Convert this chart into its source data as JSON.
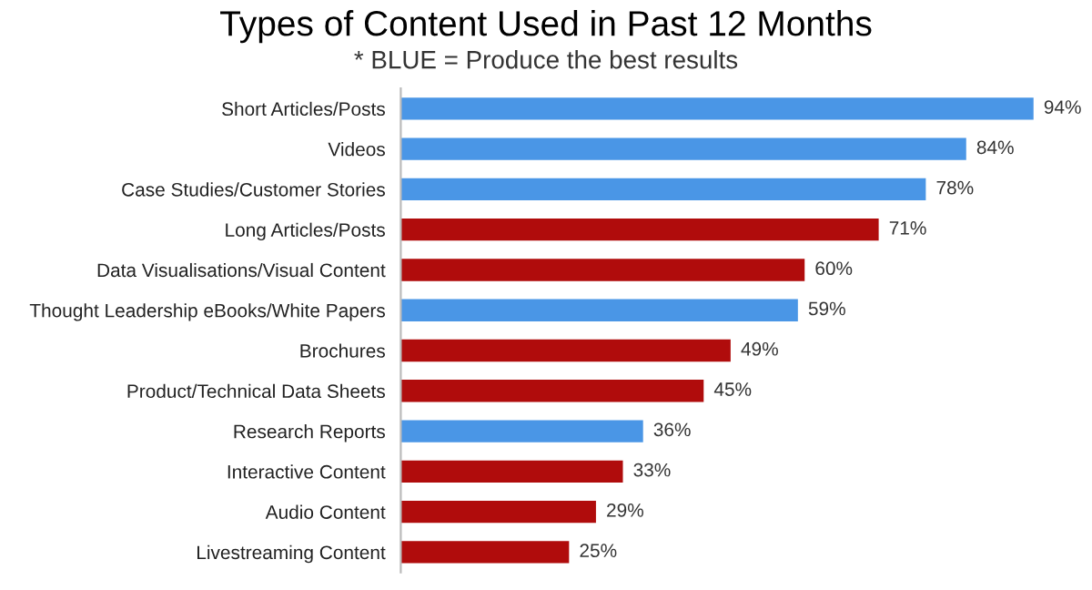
{
  "chart_data": {
    "type": "bar",
    "orientation": "horizontal",
    "title": "Types of Content Used in Past 12 Months",
    "subtitle": "* BLUE = Produce the best results",
    "categories": [
      "Short Articles/Posts",
      "Videos",
      "Case Studies/Customer Stories",
      "Long Articles/Posts",
      "Data Visualisations/Visual Content",
      "Thought Leadership eBooks/White Papers",
      "Brochures",
      "Product/Technical Data Sheets",
      "Research Reports",
      "Interactive Content",
      "Audio Content",
      "Livestreaming Content"
    ],
    "values": [
      94,
      84,
      78,
      71,
      60,
      59,
      49,
      45,
      36,
      33,
      29,
      25
    ],
    "colors": [
      "#4a96e6",
      "#4a96e6",
      "#4a96e6",
      "#b00c0c",
      "#b00c0c",
      "#4a96e6",
      "#b00c0c",
      "#b00c0c",
      "#4a96e6",
      "#b00c0c",
      "#b00c0c",
      "#b00c0c"
    ],
    "value_labels": [
      "94%",
      "84%",
      "78%",
      "71%",
      "60%",
      "59%",
      "49%",
      "45%",
      "36%",
      "33%",
      "29%",
      "25%"
    ],
    "grid": false,
    "legend": false
  }
}
